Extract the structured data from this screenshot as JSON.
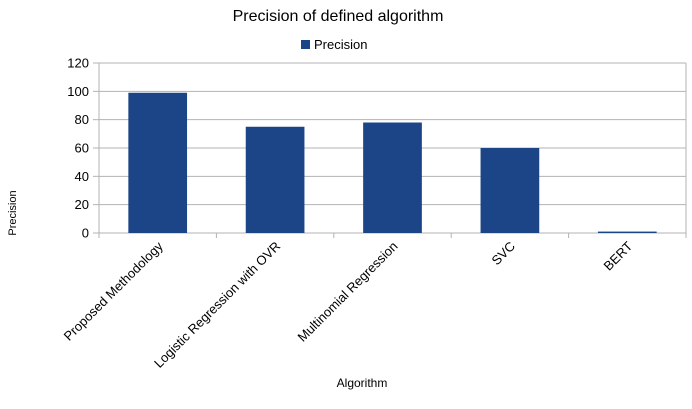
{
  "chart_data": {
    "type": "bar",
    "title": "Precision of defined algorithm",
    "xlabel": "Algorithm",
    "ylabel": "Precision",
    "categories": [
      "Proposed Methodology",
      "Logistic Regression with OVR",
      "Multinomial Regression",
      "SVC",
      "BERT"
    ],
    "series": [
      {
        "name": "Precision",
        "values": [
          99,
          75,
          78,
          60,
          1
        ],
        "color": "#1c4587"
      }
    ],
    "ylim": [
      0,
      120
    ],
    "yticks": [
      "0",
      "20",
      "40",
      "60",
      "80",
      "100",
      "120"
    ],
    "grid": true,
    "legend": "top-center"
  }
}
